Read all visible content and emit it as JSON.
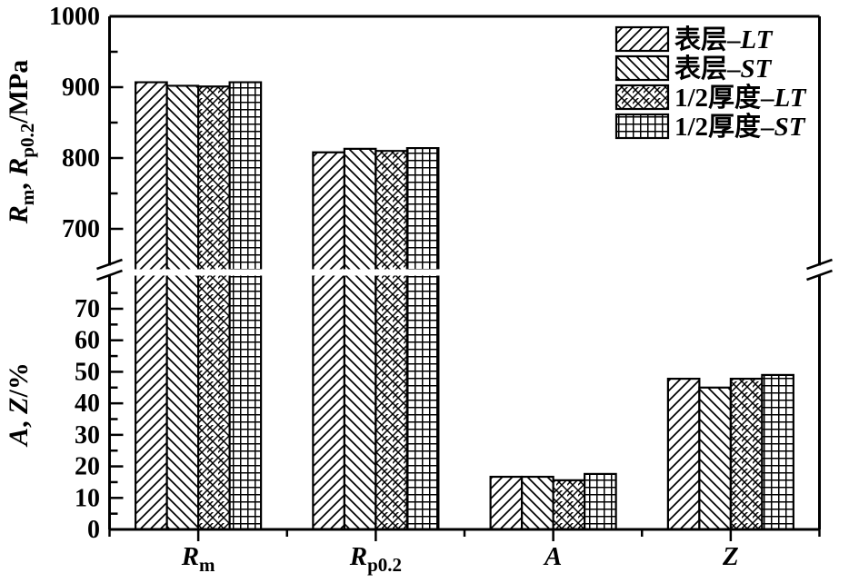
{
  "chart_data": {
    "type": "bar",
    "title": "",
    "background_color": "#ffffff",
    "foreground_color": "#000000",
    "broken_y_axis": true,
    "legend_position": "top-right",
    "categories": [
      "Rm",
      "Rp0.2",
      "A",
      "Z"
    ],
    "categories_rich": [
      {
        "key": "Rm",
        "base": "R",
        "sub": "m",
        "italic": true
      },
      {
        "key": "Rp0.2",
        "base": "R",
        "sub": "p0.2",
        "italic": true
      },
      {
        "key": "A",
        "base": "A",
        "sub": "",
        "italic": true
      },
      {
        "key": "Z",
        "base": "Z",
        "sub": "",
        "italic": true
      }
    ],
    "series": [
      {
        "name": "表层-LT",
        "label_prefix": "表层",
        "label_dash": "–",
        "label_suffix": "LT",
        "pattern": "diag-forward",
        "values": [
          907,
          808,
          16.7,
          47.8
        ]
      },
      {
        "name": "表层-ST",
        "label_prefix": "表层",
        "label_dash": "–",
        "label_suffix": "ST",
        "pattern": "diag-backward",
        "values": [
          902,
          813,
          16.7,
          45.0
        ]
      },
      {
        "name": "1/2厚度-LT",
        "label_prefix": "1/2厚度",
        "label_dash": "–",
        "label_suffix": "LT",
        "pattern": "crosshatch",
        "values": [
          901,
          810,
          15.6,
          47.8
        ]
      },
      {
        "name": "1/2厚度-ST",
        "label_prefix": "1/2厚度",
        "label_dash": "–",
        "label_suffix": "ST",
        "pattern": "grid",
        "values": [
          907,
          814,
          17.6,
          49.0
        ]
      }
    ],
    "top_axis": {
      "label_text": "Rm, Rp0.2/MPa",
      "label_parts": [
        {
          "t": "R",
          "italic": true
        },
        {
          "t": "m",
          "sub": true
        },
        {
          "t": ", "
        },
        {
          "t": "R",
          "italic": true
        },
        {
          "t": "p0.2",
          "sub": true
        },
        {
          "t": "/MPa"
        }
      ],
      "unit": "MPa",
      "major_ticks": [
        1000,
        900,
        800,
        700
      ],
      "minor_ticks": [
        950,
        850,
        750
      ],
      "range": [
        643,
        1000
      ]
    },
    "bottom_axis": {
      "label_text": "A, Z/%",
      "label_parts": [
        {
          "t": "A",
          "italic": true
        },
        {
          "t": ", "
        },
        {
          "t": "Z",
          "italic": true
        },
        {
          "t": "/%"
        }
      ],
      "unit": "%",
      "major_ticks": [
        70,
        60,
        50,
        40,
        30,
        20,
        10,
        0
      ],
      "minor_ticks": [
        75,
        65,
        55,
        45,
        35,
        25,
        15,
        5
      ],
      "range": [
        0,
        80
      ]
    }
  }
}
